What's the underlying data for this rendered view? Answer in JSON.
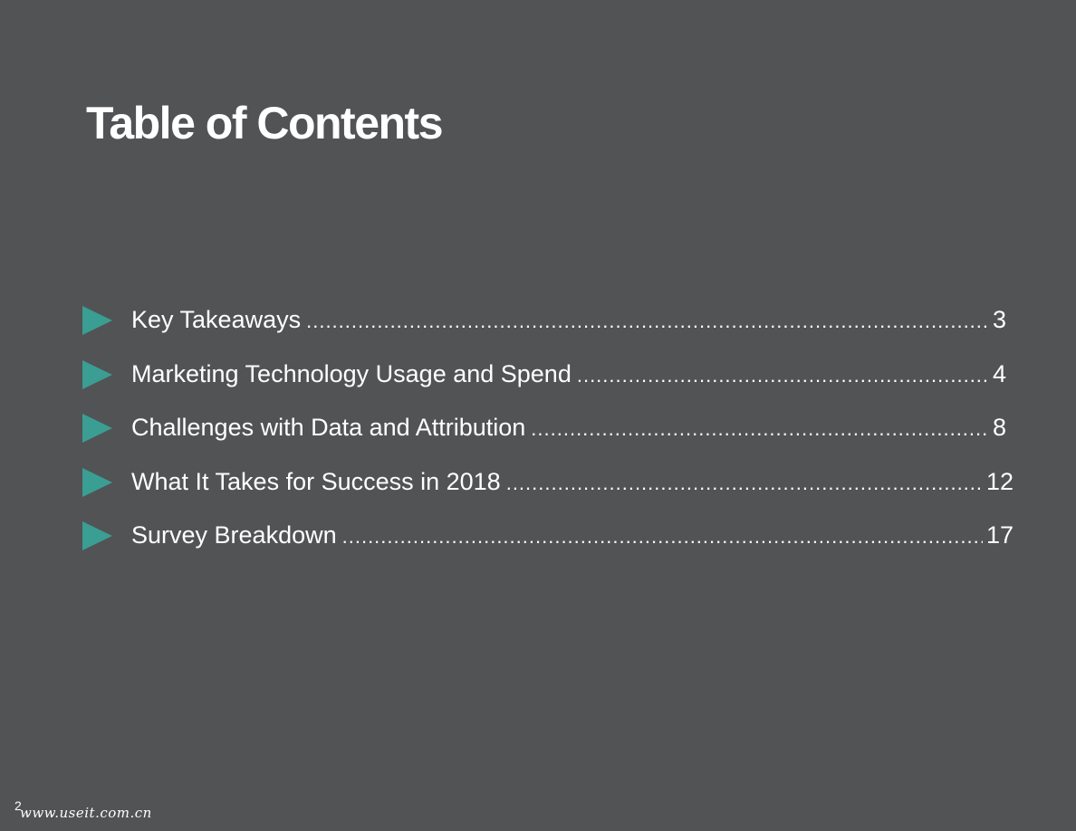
{
  "title": "Table of Contents",
  "toc": [
    {
      "label": "Key Takeaways ",
      "page": "3"
    },
    {
      "label": "Marketing Technology Usage and Spend",
      "page": "4"
    },
    {
      "label": "Challenges with Data and Attribution",
      "page": "8"
    },
    {
      "label": "What It Takes for Success in 2018",
      "page": "12"
    },
    {
      "label": "Survey Breakdown ",
      "page": "17"
    }
  ],
  "footer": {
    "page_number": "2",
    "watermark": "www.useit.com.cn"
  },
  "colors": {
    "background": "#525355",
    "accent": "#3a9e93",
    "text": "#ffffff"
  }
}
